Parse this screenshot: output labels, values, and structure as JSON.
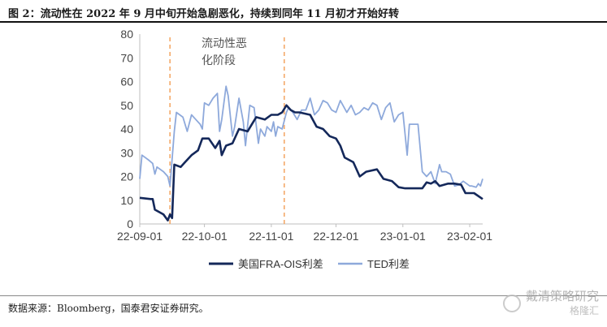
{
  "figure": {
    "title": "图 2：流动性在 2022 年 9 月中旬开始急剧恶化，持续到同年 11 月初才开始好转",
    "source": "数据来源：Bloomberg，国泰君安证券研究。",
    "annotation": "流动性恶\n化阶段",
    "watermark_main": "戴清策略研究",
    "watermark_sub": "格隆汇"
  },
  "colors": {
    "navy": "#14285a",
    "light_blue": "#8ea9db",
    "orange": "#f4a460",
    "axis": "#bfbfbf",
    "text": "#444444"
  },
  "chart_data": {
    "type": "line",
    "title": "",
    "xlabel": "",
    "ylabel": "",
    "ylim": [
      0,
      80
    ],
    "yticks": [
      0,
      10,
      20,
      30,
      40,
      50,
      60,
      70,
      80
    ],
    "xticks": [
      "22-09-01",
      "22-10-01",
      "22-11-01",
      "22-12-01",
      "23-01-01",
      "23-02-01"
    ],
    "xlim": [
      "2022-09-01",
      "2023-02-07"
    ],
    "grid": false,
    "legend": "bottom",
    "vlines": [
      "2022-09-15",
      "2022-11-07"
    ],
    "series": [
      {
        "name": "美国FRA-OIS利差",
        "color": "#14285a",
        "points": [
          [
            "2022-09-01",
            11
          ],
          [
            "2022-09-06",
            10.5
          ],
          [
            "2022-09-07",
            10.5
          ],
          [
            "2022-09-08",
            6
          ],
          [
            "2022-09-12",
            4
          ],
          [
            "2022-09-14",
            1.5
          ],
          [
            "2022-09-15",
            4
          ],
          [
            "2022-09-16",
            2.5
          ],
          [
            "2022-09-17",
            25
          ],
          [
            "2022-09-20",
            24
          ],
          [
            "2022-09-22",
            26
          ],
          [
            "2022-09-25",
            29
          ],
          [
            "2022-09-28",
            31
          ],
          [
            "2022-09-30",
            36
          ],
          [
            "2022-10-03",
            36
          ],
          [
            "2022-10-06",
            32
          ],
          [
            "2022-10-08",
            35
          ],
          [
            "2022-10-09",
            29
          ],
          [
            "2022-10-11",
            33
          ],
          [
            "2022-10-14",
            34
          ],
          [
            "2022-10-17",
            40
          ],
          [
            "2022-10-21",
            39
          ],
          [
            "2022-10-23",
            42
          ],
          [
            "2022-10-25",
            45
          ],
          [
            "2022-10-29",
            44
          ],
          [
            "2022-11-01",
            46
          ],
          [
            "2022-11-04",
            46
          ],
          [
            "2022-11-06",
            47
          ],
          [
            "2022-11-08",
            50
          ],
          [
            "2022-11-10",
            48
          ],
          [
            "2022-11-12",
            47
          ],
          [
            "2022-11-14",
            47
          ],
          [
            "2022-11-19",
            46
          ],
          [
            "2022-11-22",
            41
          ],
          [
            "2022-11-25",
            40
          ],
          [
            "2022-11-28",
            37
          ],
          [
            "2022-12-01",
            36
          ],
          [
            "2022-12-03",
            33
          ],
          [
            "2022-12-05",
            28
          ],
          [
            "2022-12-09",
            26
          ],
          [
            "2022-12-12",
            20
          ],
          [
            "2022-12-15",
            22
          ],
          [
            "2022-12-20",
            23
          ],
          [
            "2022-12-23",
            19
          ],
          [
            "2022-12-27",
            18
          ],
          [
            "2022-12-30",
            15.5
          ],
          [
            "2023-01-02",
            15
          ],
          [
            "2023-01-05",
            15
          ],
          [
            "2023-01-10",
            15
          ],
          [
            "2023-01-12",
            17.5
          ],
          [
            "2023-01-14",
            17
          ],
          [
            "2023-01-16",
            18
          ],
          [
            "2023-01-18",
            16
          ],
          [
            "2023-01-22",
            17
          ],
          [
            "2023-01-25",
            17
          ],
          [
            "2023-01-28",
            16.5
          ],
          [
            "2023-01-30",
            13
          ],
          [
            "2023-02-03",
            13
          ],
          [
            "2023-02-07",
            10.5
          ]
        ]
      },
      {
        "name": "TED利差",
        "color": "#8ea9db",
        "points": [
          [
            "2022-09-01",
            19
          ],
          [
            "2022-09-02",
            29
          ],
          [
            "2022-09-05",
            27
          ],
          [
            "2022-09-07",
            25.5
          ],
          [
            "2022-09-08",
            21
          ],
          [
            "2022-09-09",
            24
          ],
          [
            "2022-09-12",
            22
          ],
          [
            "2022-09-14",
            20
          ],
          [
            "2022-09-15",
            16
          ],
          [
            "2022-09-17",
            39
          ],
          [
            "2022-09-18",
            47
          ],
          [
            "2022-09-21",
            45
          ],
          [
            "2022-09-23",
            39
          ],
          [
            "2022-09-25",
            46
          ],
          [
            "2022-09-27",
            44
          ],
          [
            "2022-09-29",
            42
          ],
          [
            "2022-09-30",
            40
          ],
          [
            "2022-10-01",
            51
          ],
          [
            "2022-10-03",
            50
          ],
          [
            "2022-10-05",
            53
          ],
          [
            "2022-10-07",
            55
          ],
          [
            "2022-10-08",
            39
          ],
          [
            "2022-10-09",
            44
          ],
          [
            "2022-10-11",
            58
          ],
          [
            "2022-10-12",
            54
          ],
          [
            "2022-10-14",
            37
          ],
          [
            "2022-10-15",
            41
          ],
          [
            "2022-10-17",
            53
          ],
          [
            "2022-10-19",
            43
          ],
          [
            "2022-10-20",
            33
          ],
          [
            "2022-10-22",
            50
          ],
          [
            "2022-10-24",
            49
          ],
          [
            "2022-10-26",
            34
          ],
          [
            "2022-10-27",
            40
          ],
          [
            "2022-10-29",
            37
          ],
          [
            "2022-10-30",
            41
          ],
          [
            "2022-11-01",
            39
          ],
          [
            "2022-11-02",
            43
          ],
          [
            "2022-11-03",
            37
          ],
          [
            "2022-11-04",
            41
          ],
          [
            "2022-11-06",
            40
          ],
          [
            "2022-11-08",
            47
          ],
          [
            "2022-11-09",
            49
          ],
          [
            "2022-11-11",
            47
          ],
          [
            "2022-11-13",
            44
          ],
          [
            "2022-11-15",
            48
          ],
          [
            "2022-11-17",
            48
          ],
          [
            "2022-11-19",
            53
          ],
          [
            "2022-11-21",
            46
          ],
          [
            "2022-11-23",
            48
          ],
          [
            "2022-11-25",
            52
          ],
          [
            "2022-11-27",
            51
          ],
          [
            "2022-11-29",
            48
          ],
          [
            "2022-12-01",
            47
          ],
          [
            "2022-12-03",
            52
          ],
          [
            "2022-12-06",
            47
          ],
          [
            "2022-12-08",
            50
          ],
          [
            "2022-12-10",
            46
          ],
          [
            "2022-12-12",
            47
          ],
          [
            "2022-12-14",
            49
          ],
          [
            "2022-12-16",
            48
          ],
          [
            "2022-12-18",
            51
          ],
          [
            "2022-12-20",
            50
          ],
          [
            "2022-12-22",
            44
          ],
          [
            "2022-12-24",
            49
          ],
          [
            "2022-12-26",
            51
          ],
          [
            "2022-12-28",
            43
          ],
          [
            "2022-12-30",
            46
          ],
          [
            "2023-01-01",
            47
          ],
          [
            "2023-01-03",
            29
          ],
          [
            "2023-01-04",
            42
          ],
          [
            "2023-01-06",
            42
          ],
          [
            "2023-01-08",
            42
          ],
          [
            "2023-01-10",
            22
          ],
          [
            "2023-01-12",
            20
          ],
          [
            "2023-01-14",
            22
          ],
          [
            "2023-01-16",
            17
          ],
          [
            "2023-01-18",
            25
          ],
          [
            "2023-01-19",
            22
          ],
          [
            "2023-01-21",
            22
          ],
          [
            "2023-01-23",
            21
          ],
          [
            "2023-01-25",
            16
          ],
          [
            "2023-01-27",
            16.5
          ],
          [
            "2023-01-29",
            18
          ],
          [
            "2023-02-01",
            16
          ],
          [
            "2023-02-02",
            16
          ],
          [
            "2023-02-04",
            15.5
          ],
          [
            "2023-02-05",
            17
          ],
          [
            "2023-02-06",
            16
          ],
          [
            "2023-02-07",
            19
          ]
        ]
      }
    ]
  }
}
